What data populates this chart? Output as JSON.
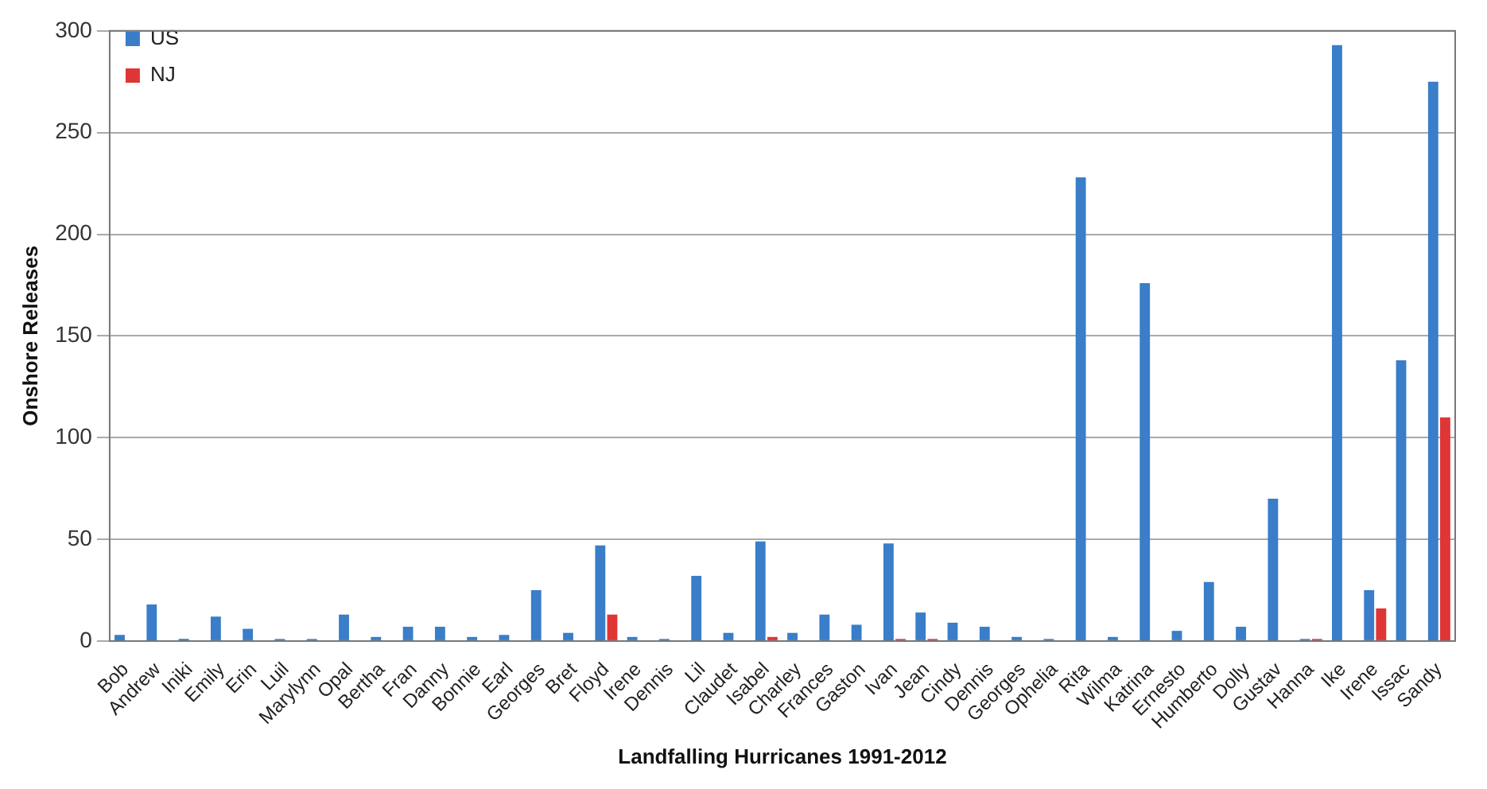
{
  "chart_data": {
    "type": "bar",
    "xlabel": "Landfalling Hurricanes 1991-2012",
    "ylabel": "Onshore Releases",
    "categories": [
      "Bob",
      "Andrew",
      "Iniki",
      "Emily",
      "Erin",
      "Luil",
      "Marylynn",
      "Opal",
      "Bertha",
      "Fran",
      "Danny",
      "Bonnie",
      "Earl",
      "Georges",
      "Bret",
      "Floyd",
      "Irene",
      "Dennis",
      "Lil",
      "Claudet",
      "Isabel",
      "Charley",
      "Frances",
      "Gaston",
      "Ivan",
      "Jean",
      "Cindy",
      "Dennis",
      "Georges",
      "Ophelia",
      "Rita",
      "Wilma",
      "Katrina",
      "Ernesto",
      "Humberto",
      "Dolly",
      "Gustav",
      "Hanna",
      "Ike",
      "Irene",
      "Issac",
      "Sandy"
    ],
    "series": [
      {
        "name": "US",
        "color": "#3a7dc9",
        "values": [
          3,
          18,
          1,
          12,
          6,
          1,
          1,
          13,
          2,
          7,
          7,
          2,
          3,
          25,
          4,
          47,
          2,
          1,
          32,
          4,
          49,
          4,
          13,
          8,
          48,
          14,
          9,
          7,
          2,
          1,
          228,
          2,
          176,
          5,
          29,
          7,
          70,
          1,
          293,
          25,
          138,
          275
        ]
      },
      {
        "name": "NJ",
        "color": "#e03535",
        "values": [
          0,
          0,
          0,
          0,
          0,
          0,
          0,
          0,
          0,
          0,
          0,
          0,
          0,
          0,
          0,
          13,
          0,
          0,
          0,
          0,
          2,
          0,
          0,
          0,
          1,
          1,
          0,
          0,
          0,
          0,
          0,
          0,
          0,
          0,
          0,
          0,
          0,
          1,
          0,
          16,
          0,
          110
        ]
      }
    ],
    "ylim": [
      0,
      300
    ],
    "yticks": [
      0,
      50,
      100,
      150,
      200,
      250,
      300
    ],
    "grid": "y",
    "legend": "top left"
  }
}
